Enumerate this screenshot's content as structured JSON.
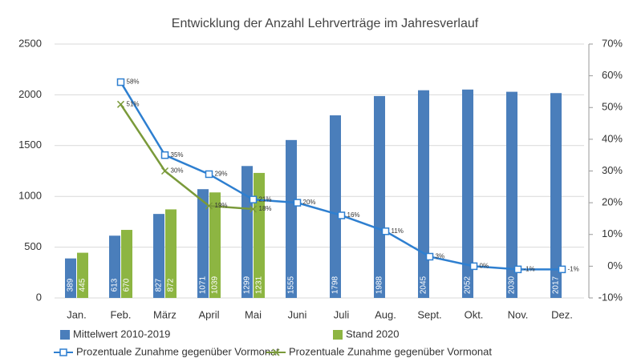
{
  "chart_data": {
    "type": "bar",
    "title": "Entwicklung der Anzahl Lehrverträge im Jahresverlauf",
    "categories": [
      "Jan.",
      "Feb.",
      "März",
      "April",
      "Mai",
      "Juni",
      "Juli",
      "Aug.",
      "Sept.",
      "Okt.",
      "Nov.",
      "Dez."
    ],
    "ylim": [
      0,
      2500
    ],
    "yticks": [
      0,
      500,
      1000,
      1500,
      2000,
      2500
    ],
    "y2lim": [
      -10,
      70
    ],
    "y2ticks": [
      {
        "value": -10,
        "label": "-10%"
      },
      {
        "value": 0,
        "label": "0%"
      },
      {
        "value": 10,
        "label": "10%"
      },
      {
        "value": 20,
        "label": "20%"
      },
      {
        "value": 30,
        "label": "30%"
      },
      {
        "value": 40,
        "label": "40%"
      },
      {
        "value": 50,
        "label": "50%"
      },
      {
        "value": 60,
        "label": "60%"
      },
      {
        "value": 70,
        "label": "70%"
      }
    ],
    "grid": true,
    "legend": "bottom",
    "series": [
      {
        "name": "Mittelwert 2010-2019",
        "type": "bar",
        "color": "#4a7ebb",
        "values": [
          389,
          613,
          827,
          1071,
          1299,
          1555,
          1798,
          1988,
          2045,
          2052,
          2030,
          2017
        ]
      },
      {
        "name": "Stand 2020",
        "type": "bar",
        "color": "#8db542",
        "values": [
          445,
          670,
          872,
          1039,
          1231,
          null,
          null,
          null,
          null,
          null,
          null,
          null
        ]
      },
      {
        "name": "Prozentuale Zunahme gegenüber Vormonat",
        "type": "line",
        "axis": "y2",
        "color": "#2e7fd0",
        "marker": "square",
        "values": [
          null,
          58,
          35,
          29,
          21,
          20,
          16,
          11,
          3,
          0,
          -1,
          -1
        ],
        "value_labels": [
          null,
          "58%",
          "35%",
          "29%",
          "21%",
          "20%",
          "16%",
          "11%",
          "3%",
          "0%",
          "-1%",
          "-1%"
        ]
      },
      {
        "name": "Prozentuale Zunahme gegenüber Vormonat",
        "type": "line",
        "axis": "y2",
        "color": "#7a9a3a",
        "marker": "x",
        "values": [
          null,
          51,
          30,
          19,
          18,
          null,
          null,
          null,
          null,
          null,
          null,
          null
        ],
        "value_labels": [
          null,
          "51%",
          "30%",
          "19%",
          "18%",
          null,
          null,
          null,
          null,
          null,
          null,
          null
        ]
      }
    ]
  }
}
